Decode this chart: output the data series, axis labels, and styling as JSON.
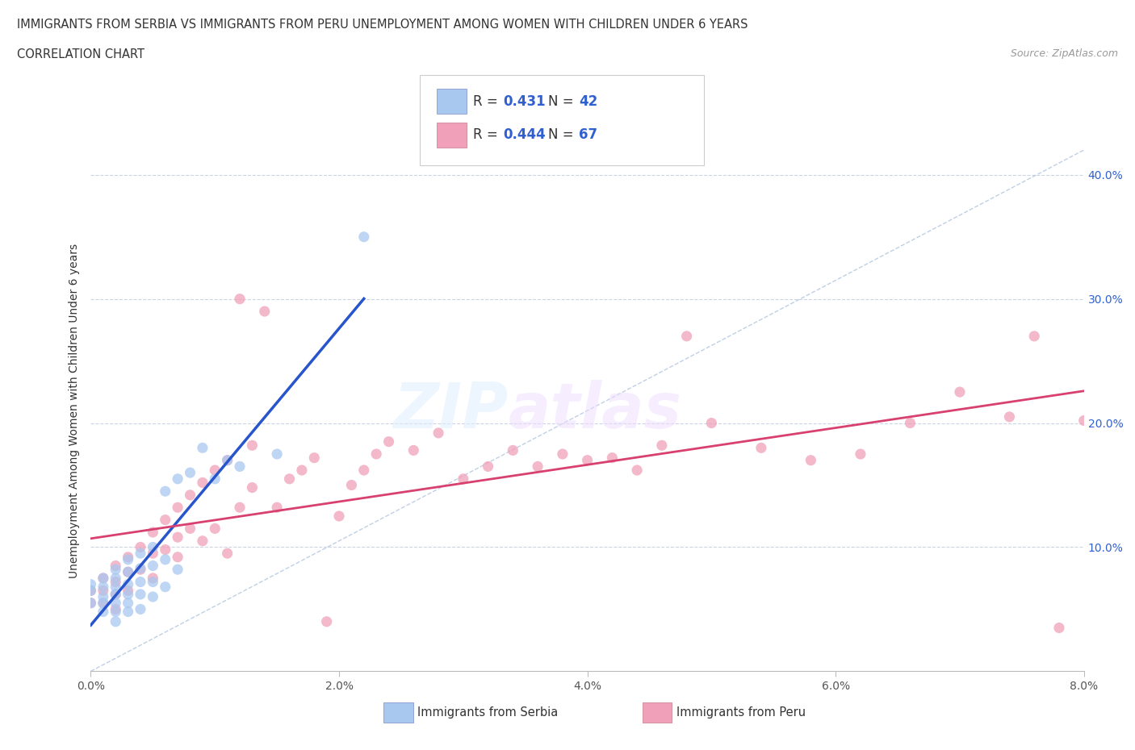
{
  "title_line1": "IMMIGRANTS FROM SERBIA VS IMMIGRANTS FROM PERU UNEMPLOYMENT AMONG WOMEN WITH CHILDREN UNDER 6 YEARS",
  "title_line2": "CORRELATION CHART",
  "source_text": "Source: ZipAtlas.com",
  "ylabel": "Unemployment Among Women with Children Under 6 years",
  "xlim": [
    0.0,
    0.08
  ],
  "ylim": [
    0.0,
    0.42
  ],
  "xtick_labels": [
    "0.0%",
    "2.0%",
    "4.0%",
    "6.0%",
    "8.0%"
  ],
  "xtick_vals": [
    0.0,
    0.02,
    0.04,
    0.06,
    0.08
  ],
  "ytick_labels": [
    "10.0%",
    "20.0%",
    "30.0%",
    "40.0%"
  ],
  "ytick_vals": [
    0.1,
    0.2,
    0.3,
    0.4
  ],
  "legend_r_serbia": "0.431",
  "legend_n_serbia": "42",
  "legend_r_peru": "0.444",
  "legend_n_peru": "67",
  "serbia_color": "#a8c8f0",
  "peru_color": "#f0a0b8",
  "serbia_line_color": "#2855cc",
  "peru_line_color": "#d84070",
  "diagonal_color": "#b0c4de",
  "serbia_scatter_x": [
    0.0,
    0.0,
    0.0,
    0.001,
    0.001,
    0.001,
    0.001,
    0.001,
    0.002,
    0.002,
    0.002,
    0.002,
    0.002,
    0.002,
    0.002,
    0.003,
    0.003,
    0.003,
    0.003,
    0.003,
    0.003,
    0.004,
    0.004,
    0.004,
    0.004,
    0.004,
    0.005,
    0.005,
    0.005,
    0.005,
    0.006,
    0.006,
    0.006,
    0.007,
    0.007,
    0.008,
    0.009,
    0.01,
    0.011,
    0.012,
    0.015,
    0.022
  ],
  "serbia_scatter_y": [
    0.07,
    0.065,
    0.055,
    0.075,
    0.068,
    0.06,
    0.055,
    0.048,
    0.082,
    0.075,
    0.068,
    0.062,
    0.055,
    0.048,
    0.04,
    0.09,
    0.08,
    0.07,
    0.062,
    0.055,
    0.048,
    0.095,
    0.083,
    0.072,
    0.062,
    0.05,
    0.1,
    0.085,
    0.072,
    0.06,
    0.145,
    0.09,
    0.068,
    0.155,
    0.082,
    0.16,
    0.18,
    0.155,
    0.17,
    0.165,
    0.175,
    0.35
  ],
  "peru_scatter_x": [
    0.0,
    0.0,
    0.001,
    0.001,
    0.001,
    0.002,
    0.002,
    0.002,
    0.002,
    0.003,
    0.003,
    0.003,
    0.004,
    0.004,
    0.005,
    0.005,
    0.005,
    0.006,
    0.006,
    0.007,
    0.007,
    0.007,
    0.008,
    0.008,
    0.009,
    0.009,
    0.01,
    0.01,
    0.011,
    0.011,
    0.012,
    0.012,
    0.013,
    0.013,
    0.014,
    0.015,
    0.016,
    0.017,
    0.018,
    0.019,
    0.02,
    0.021,
    0.022,
    0.023,
    0.024,
    0.026,
    0.028,
    0.03,
    0.032,
    0.034,
    0.036,
    0.038,
    0.04,
    0.042,
    0.044,
    0.046,
    0.048,
    0.05,
    0.054,
    0.058,
    0.062,
    0.066,
    0.07,
    0.074,
    0.076,
    0.078,
    0.08
  ],
  "peru_scatter_y": [
    0.065,
    0.055,
    0.075,
    0.065,
    0.055,
    0.085,
    0.072,
    0.062,
    0.05,
    0.092,
    0.08,
    0.065,
    0.1,
    0.082,
    0.112,
    0.095,
    0.075,
    0.122,
    0.098,
    0.132,
    0.108,
    0.092,
    0.142,
    0.115,
    0.152,
    0.105,
    0.162,
    0.115,
    0.17,
    0.095,
    0.3,
    0.132,
    0.182,
    0.148,
    0.29,
    0.132,
    0.155,
    0.162,
    0.172,
    0.04,
    0.125,
    0.15,
    0.162,
    0.175,
    0.185,
    0.178,
    0.192,
    0.155,
    0.165,
    0.178,
    0.165,
    0.175,
    0.17,
    0.172,
    0.162,
    0.182,
    0.27,
    0.2,
    0.18,
    0.17,
    0.175,
    0.2,
    0.225,
    0.205,
    0.27,
    0.035,
    0.202
  ]
}
